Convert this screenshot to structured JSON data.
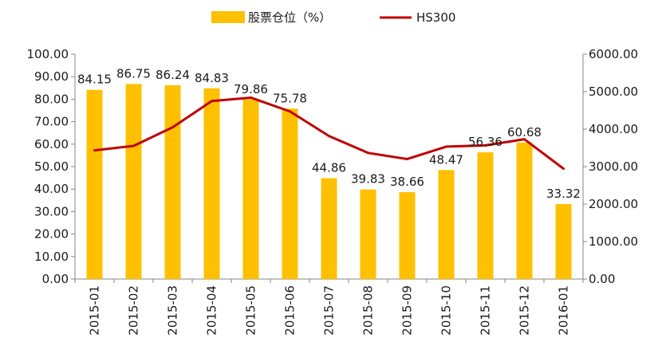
{
  "chart_data": {
    "type": "bar",
    "categories": [
      "2015-01",
      "2015-02",
      "2015-03",
      "2015-04",
      "2015-05",
      "2015-06",
      "2015-07",
      "2015-08",
      "2015-09",
      "2015-10",
      "2015-11",
      "2015-12",
      "2016-01"
    ],
    "series": [
      {
        "name": "股票仓位（%）",
        "type": "bar",
        "axis": "left",
        "color": "#FFC000",
        "values": [
          84.15,
          86.75,
          86.24,
          84.83,
          79.86,
          75.78,
          44.86,
          39.83,
          38.66,
          48.47,
          56.36,
          60.68,
          33.32
        ],
        "labels": [
          "84.15",
          "86.75",
          "86.24",
          "84.83",
          "79.86",
          "75.78",
          "44.86",
          "39.83",
          "38.66",
          "48.47",
          "56.36",
          "60.68",
          "33.32"
        ]
      },
      {
        "name": "HS300",
        "type": "line",
        "axis": "right",
        "color": "#C00000",
        "values": [
          3434,
          3553,
          4051,
          4750,
          4841,
          4473,
          3817,
          3366,
          3203,
          3534,
          3567,
          3731,
          2946
        ]
      }
    ],
    "y_left": {
      "min": 0,
      "max": 100,
      "step": 10,
      "tick_labels": [
        "0.00",
        "10.00",
        "20.00",
        "30.00",
        "40.00",
        "50.00",
        "60.00",
        "70.00",
        "80.00",
        "90.00",
        "100.00"
      ]
    },
    "y_right": {
      "min": 0,
      "max": 6000,
      "step": 1000,
      "tick_labels": [
        "0.00",
        "1000.00",
        "2000.00",
        "3000.00",
        "4000.00",
        "5000.00",
        "6000.00"
      ]
    },
    "legend_position": "top",
    "grid": false,
    "title": "",
    "xlabel": "",
    "ylabel": ""
  }
}
